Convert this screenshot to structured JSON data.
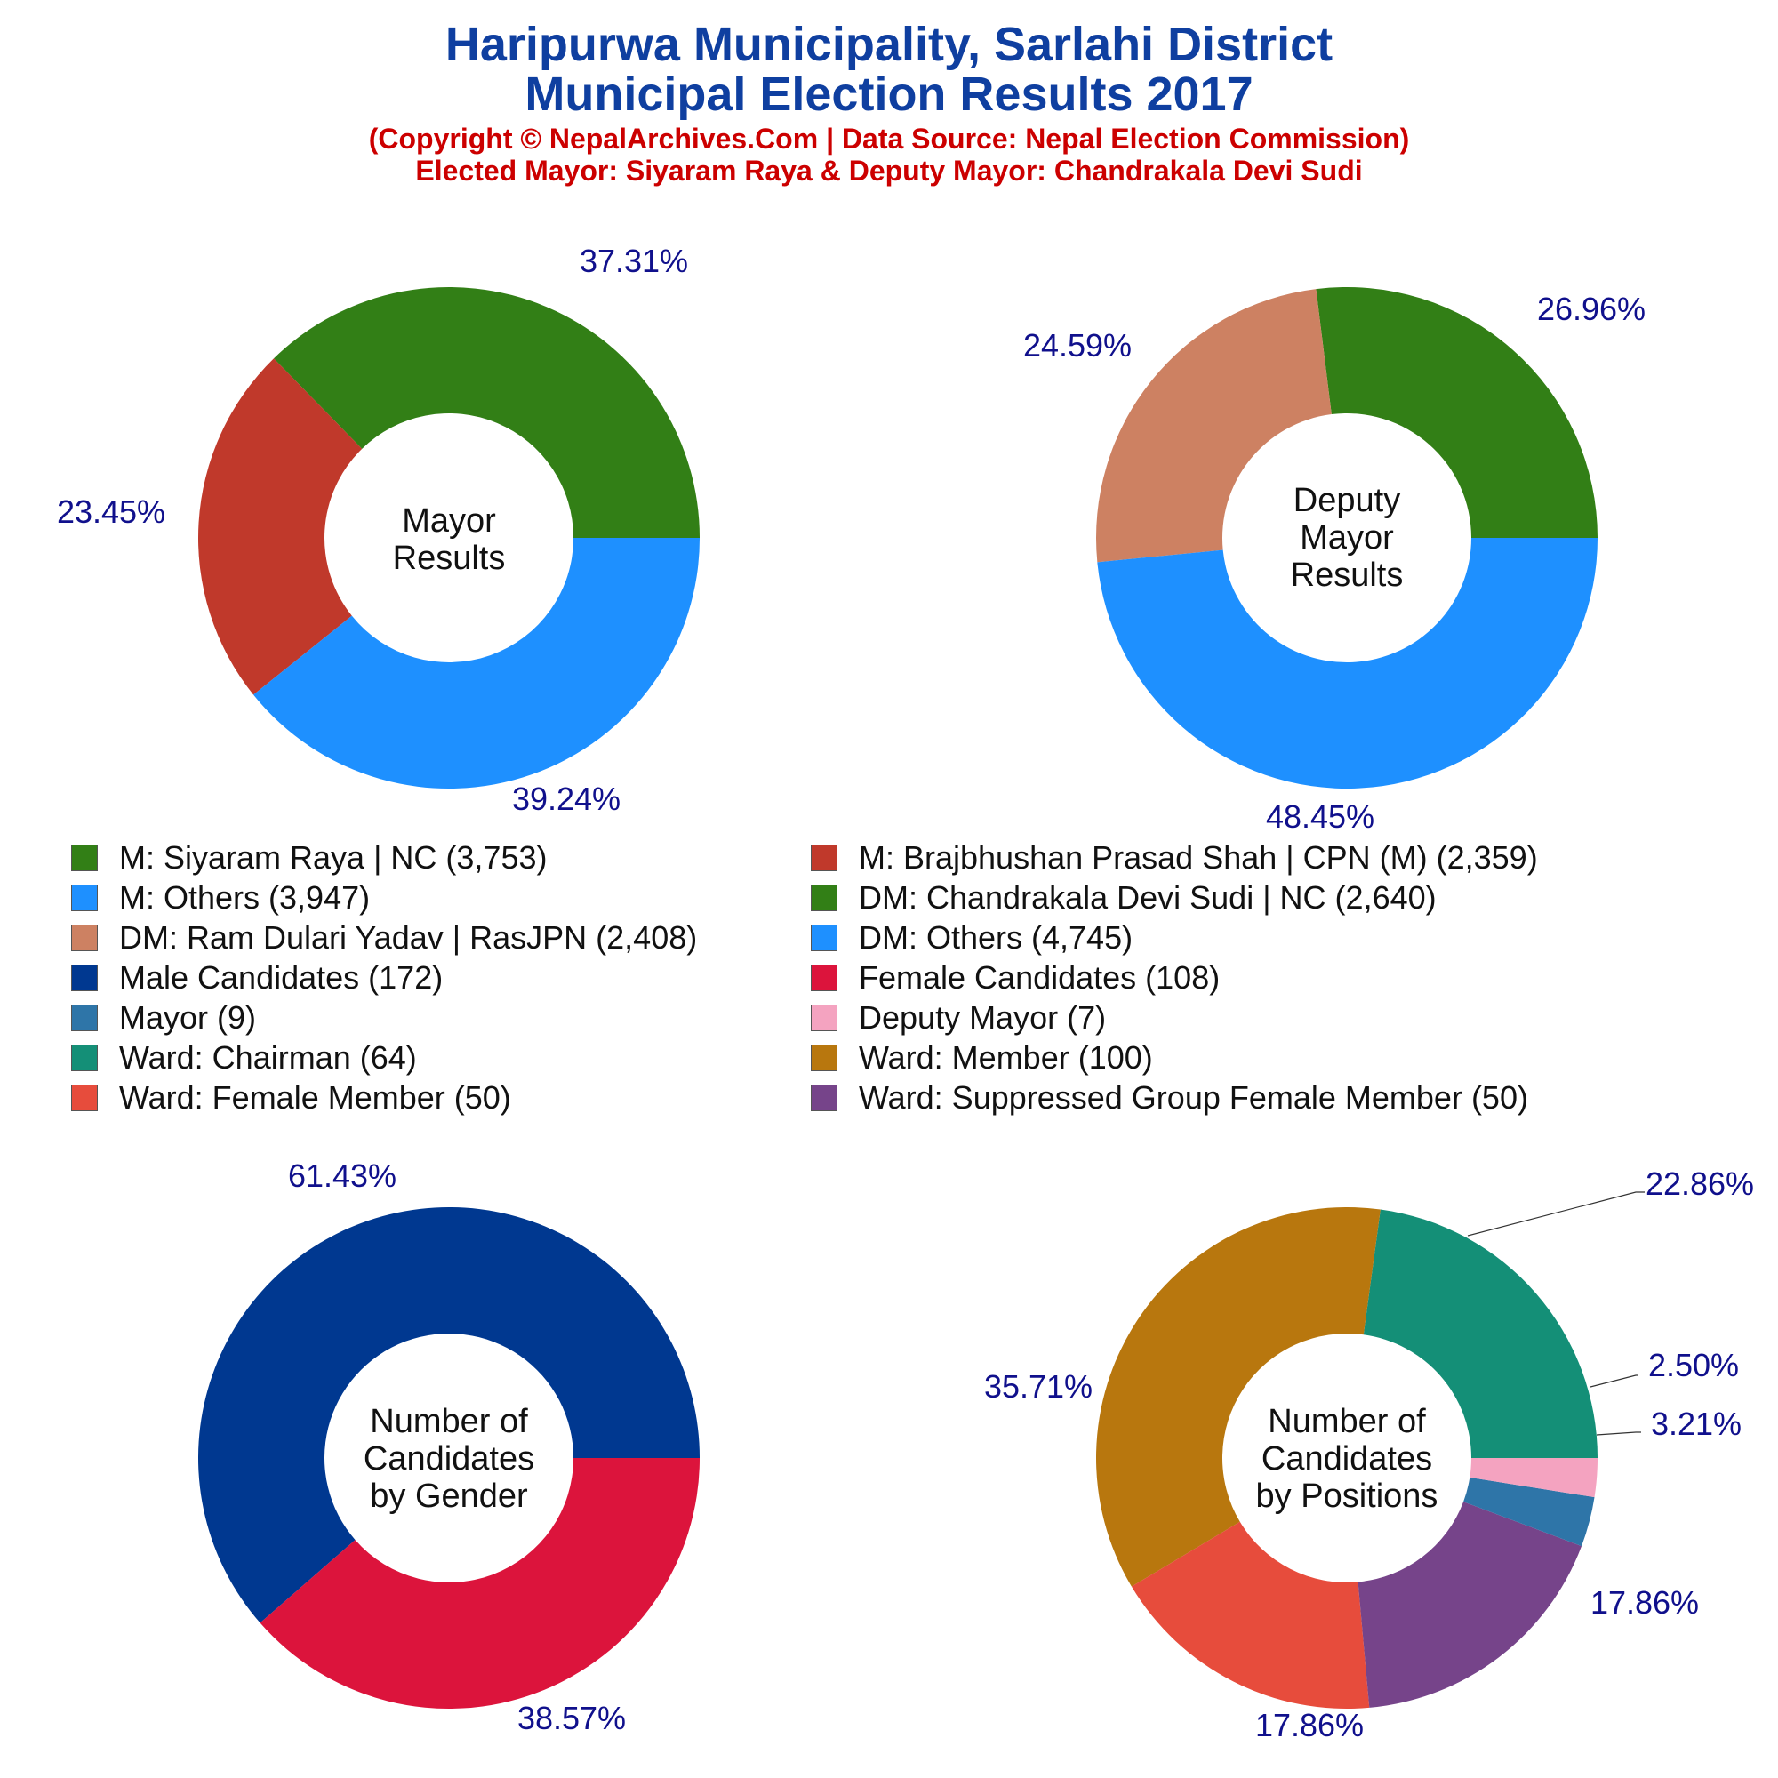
{
  "header": {
    "title_line1": "Haripurwa Municipality, Sarlahi District",
    "title_line2": "Municipal Election Results 2017",
    "subtitle_line1": "(Copyright © NepalArchives.Com | Data Source: Nepal Election Commission)",
    "subtitle_line2": "Elected Mayor: Siyaram Raya & Deputy Mayor: Chandrakala Devi Sudi"
  },
  "colors": {
    "title": "#0f3fa0",
    "subtitle": "#cc0000",
    "percent_label": "#10108c"
  },
  "chart_data": [
    {
      "type": "pie",
      "variant": "donut",
      "center_label": [
        "Mayor",
        "Results"
      ],
      "slices": [
        {
          "label": "M: Siyaram Raya | NC",
          "value": 3753,
          "percent_label": "37.31%",
          "color": "#327f16"
        },
        {
          "label": "M: Brajbhushan Prasad Shah | CPN (M)",
          "value": 2359,
          "percent_label": "23.45%",
          "color": "#c0392b"
        },
        {
          "label": "M: Others",
          "value": 3947,
          "percent_label": "39.24%",
          "color": "#1e90ff"
        }
      ]
    },
    {
      "type": "pie",
      "variant": "donut",
      "center_label": [
        "Deputy",
        "Mayor",
        "Results"
      ],
      "slices": [
        {
          "label": "DM: Chandrakala Devi Sudi | NC",
          "value": 2640,
          "percent_label": "26.96%",
          "color": "#327f16"
        },
        {
          "label": "DM: Ram Dulari Yadav | RasJPN",
          "value": 2408,
          "percent_label": "24.59%",
          "color": "#cd8162"
        },
        {
          "label": "DM: Others",
          "value": 4745,
          "percent_label": "48.45%",
          "color": "#1e90ff"
        }
      ]
    },
    {
      "type": "pie",
      "variant": "donut",
      "center_label": [
        "Number of",
        "Candidates",
        "by Gender"
      ],
      "slices": [
        {
          "label": "Male Candidates",
          "value": 172,
          "percent_label": "61.43%",
          "color": "#003890"
        },
        {
          "label": "Female Candidates",
          "value": 108,
          "percent_label": "38.57%",
          "color": "#dc143c"
        }
      ]
    },
    {
      "type": "pie",
      "variant": "donut",
      "center_label": [
        "Number of",
        "Candidates",
        "by Positions"
      ],
      "slices": [
        {
          "label": "Ward: Chairman",
          "value": 64,
          "percent_label": "22.86%",
          "color": "#148f77"
        },
        {
          "label": "Ward: Member",
          "value": 100,
          "percent_label": "35.71%",
          "color": "#b8770e"
        },
        {
          "label": "Ward: Female Member",
          "value": 50,
          "percent_label": "17.86%",
          "color": "#e74c3c"
        },
        {
          "label": "Ward: Suppressed Group Female Member",
          "value": 50,
          "percent_label": "17.86%",
          "color": "#76448a"
        },
        {
          "label": "Mayor",
          "value": 9,
          "percent_label": "3.21%",
          "color": "#2e75a8"
        },
        {
          "label": "Deputy Mayor",
          "value": 7,
          "percent_label": "2.50%",
          "color": "#f4a3c0"
        }
      ]
    }
  ],
  "legend": [
    {
      "text": "M: Siyaram Raya | NC (3,753)",
      "color": "#327f16"
    },
    {
      "text": "M: Brajbhushan Prasad Shah | CPN (M) (2,359)",
      "color": "#c0392b"
    },
    {
      "text": "M: Others (3,947)",
      "color": "#1e90ff"
    },
    {
      "text": "DM: Chandrakala Devi Sudi | NC (2,640)",
      "color": "#327f16"
    },
    {
      "text": "DM: Ram Dulari Yadav | RasJPN (2,408)",
      "color": "#cd8162"
    },
    {
      "text": "DM: Others (4,745)",
      "color": "#1e90ff"
    },
    {
      "text": "Male Candidates (172)",
      "color": "#003890"
    },
    {
      "text": "Female Candidates (108)",
      "color": "#dc143c"
    },
    {
      "text": "Mayor (9)",
      "color": "#2e75a8"
    },
    {
      "text": "Deputy Mayor (7)",
      "color": "#f4a3c0"
    },
    {
      "text": "Ward: Chairman (64)",
      "color": "#148f77"
    },
    {
      "text": "Ward: Member (100)",
      "color": "#b8770e"
    },
    {
      "text": "Ward: Female Member (50)",
      "color": "#e74c3c"
    },
    {
      "text": "Ward: Suppressed Group Female Member (50)",
      "color": "#76448a"
    }
  ]
}
